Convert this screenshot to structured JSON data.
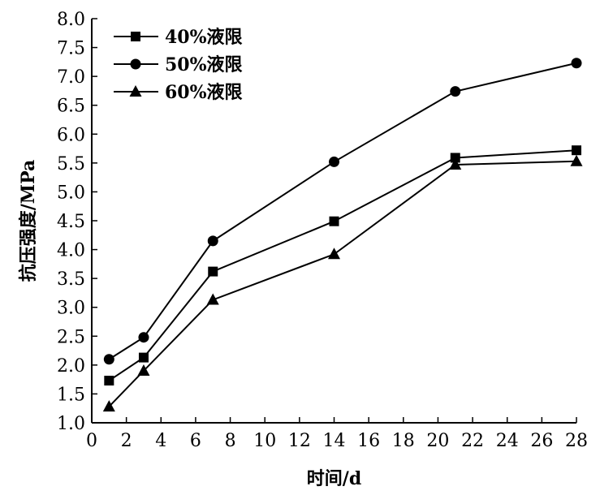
{
  "chart_data": {
    "type": "line",
    "xlabel": "时间/d",
    "ylabel": "抗压强度/MPa",
    "xlim": [
      0,
      28
    ],
    "ylim": [
      1.0,
      8.0
    ],
    "xticks": [
      "0",
      "2",
      "4",
      "6",
      "8",
      "10",
      "12",
      "14",
      "16",
      "18",
      "20",
      "22",
      "24",
      "26",
      "28"
    ],
    "yticks": [
      "1.0",
      "1.5",
      "2.0",
      "2.5",
      "3.0",
      "3.5",
      "4.0",
      "4.5",
      "5.0",
      "5.5",
      "6.0",
      "6.5",
      "7.0",
      "7.5",
      "8.0"
    ],
    "grid": false,
    "legend_position": "top-left",
    "x": [
      1,
      3,
      7,
      14,
      21,
      28
    ],
    "series": [
      {
        "name": "40%液限",
        "marker": "square",
        "values": [
          1.73,
          2.13,
          3.62,
          4.49,
          5.59,
          5.72
        ]
      },
      {
        "name": "50%液限",
        "marker": "circle",
        "values": [
          2.1,
          2.48,
          4.15,
          5.52,
          6.74,
          7.23
        ]
      },
      {
        "name": "60%液限",
        "marker": "triangle",
        "values": [
          1.28,
          1.9,
          3.13,
          3.92,
          5.47,
          5.53
        ]
      }
    ]
  }
}
